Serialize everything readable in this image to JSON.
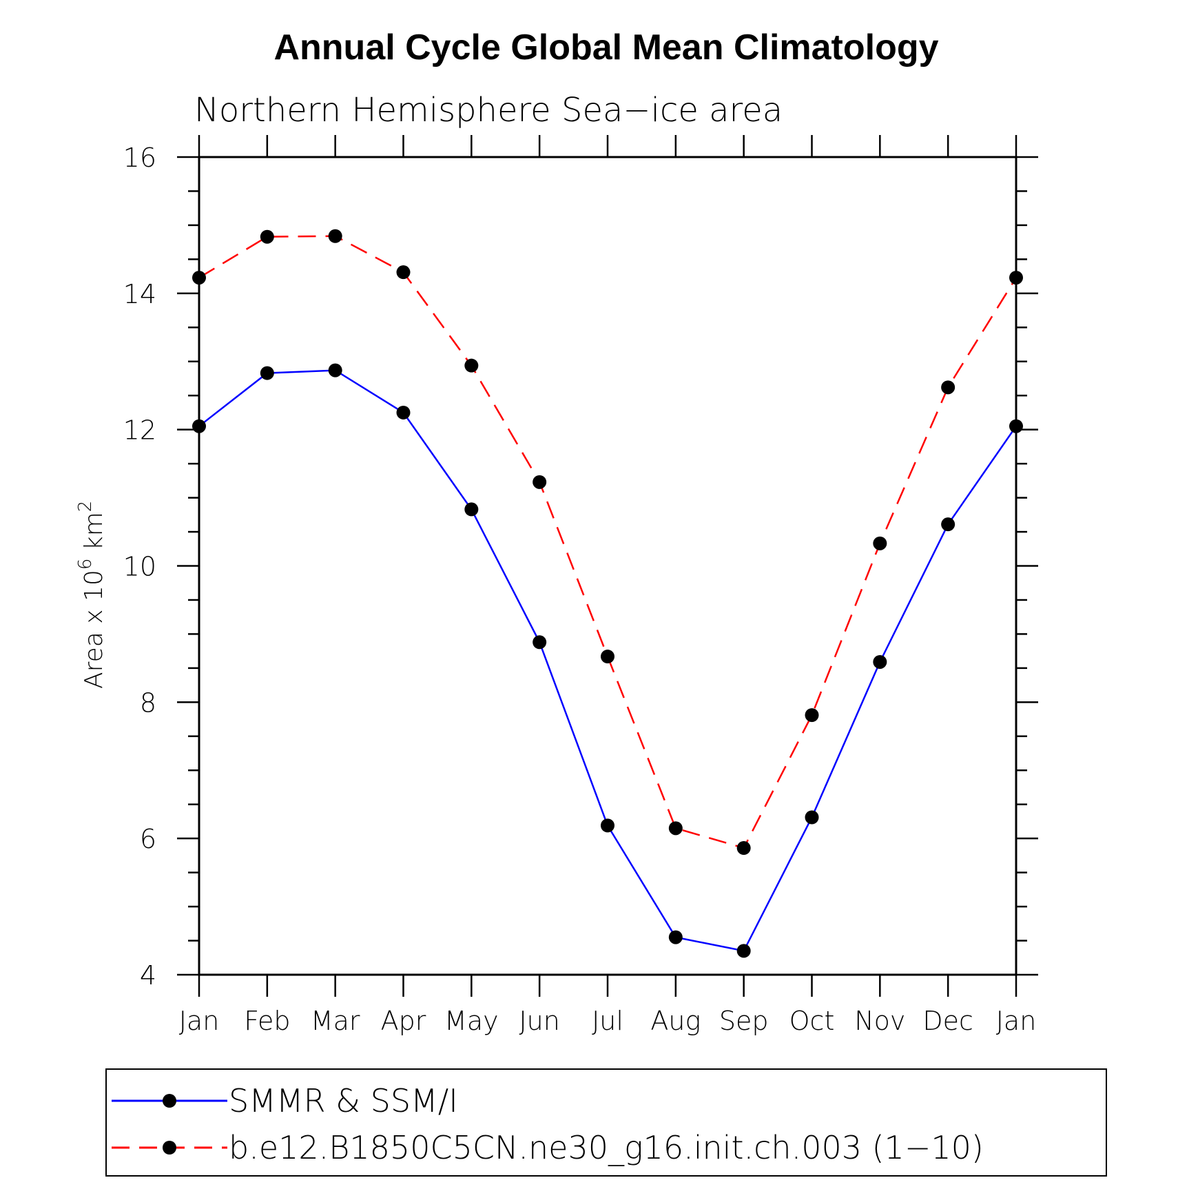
{
  "chart_data": {
    "type": "line",
    "title": "Annual Cycle Global Mean Climatology",
    "subtitle": "Northern Hemisphere Sea−ice area",
    "xlabel": "",
    "ylabel_parts": {
      "base": "Area x 10",
      "exp1": "6",
      "unit": " km",
      "exp2": "2"
    },
    "categories": [
      "Jan",
      "Feb",
      "Mar",
      "Apr",
      "May",
      "Jun",
      "Jul",
      "Aug",
      "Sep",
      "Oct",
      "Nov",
      "Dec",
      "Jan"
    ],
    "ylim": [
      4,
      16
    ],
    "yticks": [
      4,
      6,
      8,
      10,
      12,
      14,
      16
    ],
    "grid": false,
    "legend_position": "bottom",
    "series": [
      {
        "name": "SMMR & SSM/I",
        "color": "#0000ff",
        "dash": "solid",
        "values": [
          12.05,
          12.83,
          12.87,
          12.25,
          10.83,
          8.88,
          6.19,
          4.55,
          4.35,
          6.31,
          8.59,
          10.61,
          12.05
        ]
      },
      {
        "name": "b.e12.B1850C5CN.ne30_g16.init.ch.003 (1−10)",
        "color": "#ff0000",
        "dash": "dashed",
        "values": [
          14.23,
          14.83,
          14.84,
          14.31,
          12.94,
          11.23,
          8.67,
          6.15,
          5.86,
          7.81,
          10.33,
          12.62,
          14.23
        ]
      }
    ]
  }
}
